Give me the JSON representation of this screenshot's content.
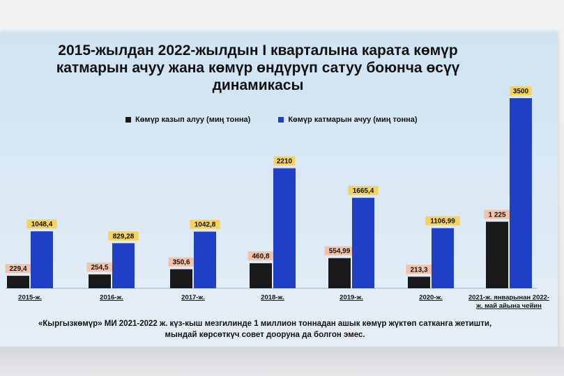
{
  "title": "2015-жылдан 2022-жылдын I кварталына карата көмүр катмарын ачуу жана көмүр өндүрүп сатуу боюнча өсүү динамикасы",
  "footnote_line1": "«Кыргызкөмүр» МИ 2021-2022 ж. күз-кыш мезгилинде 1 миллион тоннадан ашык көмүр жүктөп сатканга жетишти,",
  "footnote_line2": "мындай көрсөткүч совет дооруна да болгон эмес.",
  "colors": {
    "coal_mining": "#1a1a1a",
    "layer_opening": "#1f3fc4",
    "label_black_bg": "#f2c3a8",
    "label_blue_bg": "#f5d25a"
  },
  "chart_data": {
    "type": "bar",
    "categories": [
      "2015-ж.",
      "2016-ж.",
      "2017-ж.",
      "2018-ж.",
      "2019-ж.",
      "2020-ж.",
      "2021-ж. январынан 2022-ж. май айына чейин"
    ],
    "category_lines": [
      [
        "2015-ж."
      ],
      [
        "2016-ж."
      ],
      [
        "2017-ж."
      ],
      [
        "2018-ж."
      ],
      [
        "2019-ж."
      ],
      [
        "2020-ж."
      ],
      [
        "2021-ж. январынан 2022-",
        "ж. май айына чейин"
      ]
    ],
    "series": [
      {
        "name": "Көмүр казып алуу (миң тонна)",
        "values": [
          229.4,
          254.5,
          350.6,
          460.8,
          554.99,
          213.3,
          1225
        ],
        "labels": [
          "229,4",
          "254,5",
          "350,6",
          "460,8",
          "554,99",
          "213,3",
          "1 225"
        ]
      },
      {
        "name": "Көмүр катмарын ачуу (миң тонна)",
        "values": [
          1048.4,
          829.28,
          1042.8,
          2210,
          1665.4,
          1106.99,
          3500
        ],
        "labels": [
          "1048,4",
          "829,28",
          "1042,8",
          "2210",
          "1665,4",
          "1106,99",
          "3500"
        ]
      }
    ],
    "ylim": [
      0,
      3500
    ],
    "grid": false,
    "legend_position": "top"
  }
}
